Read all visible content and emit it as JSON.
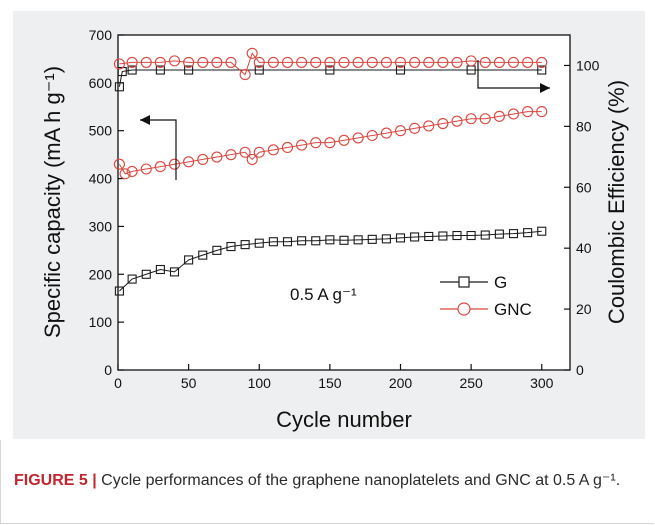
{
  "chart_data": {
    "type": "scatter",
    "xlabel": "Cycle number",
    "ylabel_left": "Specific capacity (mA h g⁻¹)",
    "ylabel_right": "Coulombic Efficiency (%)",
    "xlim": [
      0,
      320
    ],
    "ylim_left": [
      0,
      700
    ],
    "ylim_right": [
      0,
      110
    ],
    "x_ticks": [
      0,
      50,
      100,
      150,
      200,
      250,
      300
    ],
    "y_left_ticks": [
      0,
      100,
      200,
      300,
      400,
      500,
      600,
      700
    ],
    "y_right_ticks": [
      0,
      20,
      40,
      60,
      80,
      100
    ],
    "annotation": "0.5 A g⁻¹",
    "series": [
      {
        "name": "G",
        "axis": "left",
        "marker": "square",
        "color": "#1a1a1a",
        "x": [
          1,
          10,
          20,
          30,
          40,
          50,
          60,
          70,
          80,
          90,
          100,
          110,
          120,
          130,
          140,
          150,
          160,
          170,
          180,
          190,
          200,
          210,
          220,
          230,
          240,
          250,
          260,
          270,
          280,
          290,
          300
        ],
        "y": [
          165,
          190,
          200,
          210,
          205,
          230,
          240,
          250,
          258,
          262,
          265,
          268,
          268,
          270,
          270,
          272,
          271,
          272,
          273,
          274,
          276,
          278,
          279,
          280,
          281,
          281,
          282,
          284,
          285,
          287,
          290
        ]
      },
      {
        "name": "G",
        "axis": "right",
        "marker": "square",
        "color": "#1a1a1a",
        "x": [
          1,
          3,
          10,
          30,
          50,
          100,
          150,
          200,
          250,
          300
        ],
        "y": [
          93,
          98,
          98.5,
          98.5,
          98.5,
          98.5,
          98.5,
          98.5,
          98.5,
          98.5
        ]
      },
      {
        "name": "GNC",
        "axis": "left",
        "marker": "circle",
        "color": "#d9473f",
        "x": [
          1,
          5,
          10,
          20,
          30,
          40,
          50,
          60,
          70,
          80,
          90,
          95,
          100,
          110,
          120,
          130,
          140,
          150,
          160,
          170,
          180,
          190,
          200,
          210,
          220,
          230,
          240,
          250,
          260,
          270,
          280,
          290,
          300
        ],
        "y": [
          430,
          410,
          415,
          420,
          425,
          430,
          435,
          440,
          445,
          450,
          455,
          440,
          455,
          460,
          465,
          470,
          475,
          475,
          480,
          485,
          490,
          495,
          500,
          505,
          510,
          515,
          520,
          525,
          525,
          530,
          535,
          540,
          540
        ]
      },
      {
        "name": "GNC",
        "axis": "right",
        "marker": "circle",
        "color": "#d9473f",
        "x": [
          1,
          10,
          20,
          30,
          40,
          50,
          60,
          70,
          80,
          90,
          95,
          100,
          110,
          120,
          130,
          140,
          150,
          160,
          170,
          180,
          190,
          200,
          210,
          220,
          230,
          240,
          250,
          260,
          270,
          280,
          290,
          300
        ],
        "y": [
          100.5,
          101,
          101,
          101,
          101.5,
          101,
          101,
          101,
          101,
          97,
          104,
          101,
          101,
          101,
          101,
          101,
          101,
          101,
          101,
          101,
          101,
          101,
          101,
          101,
          101,
          101,
          101.5,
          101,
          101,
          101,
          101,
          101
        ]
      }
    ]
  },
  "caption": {
    "label": "FIGURE 5",
    "separator": " | ",
    "text": "Cycle performances of the graphene nanoplatelets and GNC at 0.5 A g⁻¹."
  }
}
